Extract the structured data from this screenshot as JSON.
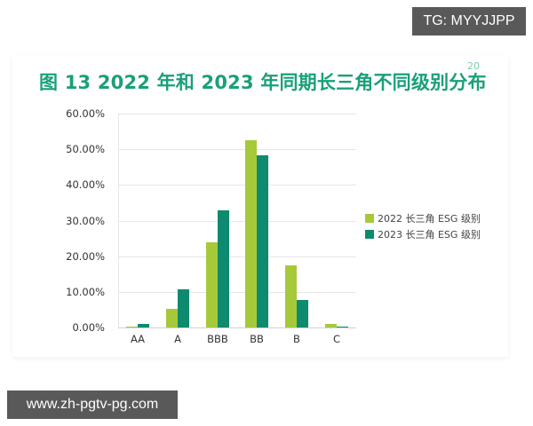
{
  "title": "图 13 2022 年和 2023 年同期长三角不同级别分布",
  "title_superscript": "20",
  "watermarks": {
    "top_right": "TG: MYYJJPP",
    "bottom_left": "www.zh-pgtv-pg.com"
  },
  "colors": {
    "title": "#1aa079",
    "series_2022": "#a6c93a",
    "series_2023": "#0e8b6e",
    "badge_bg": "#595959"
  },
  "chart_data": {
    "type": "bar",
    "title": "图 13 2022 年和 2023 年同期长三角不同级别分布",
    "xlabel": "",
    "ylabel": "",
    "categories": [
      "AA",
      "A",
      "BBB",
      "BB",
      "B",
      "C"
    ],
    "series": [
      {
        "name": "2022 长三角 ESG 级别",
        "color": "#a6c93a",
        "values": [
          0.3,
          5.2,
          24.0,
          52.5,
          17.4,
          1.1
        ]
      },
      {
        "name": "2023 长三角 ESG 级别",
        "color": "#0e8b6e",
        "values": [
          1.0,
          10.7,
          32.8,
          48.3,
          7.6,
          0.3
        ]
      }
    ],
    "ylim": [
      0,
      60
    ],
    "yticks": [
      "0.00%",
      "10.00%",
      "20.00%",
      "30.00%",
      "40.00%",
      "50.00%",
      "60.00%"
    ],
    "grid": true,
    "legend_position": "right"
  }
}
